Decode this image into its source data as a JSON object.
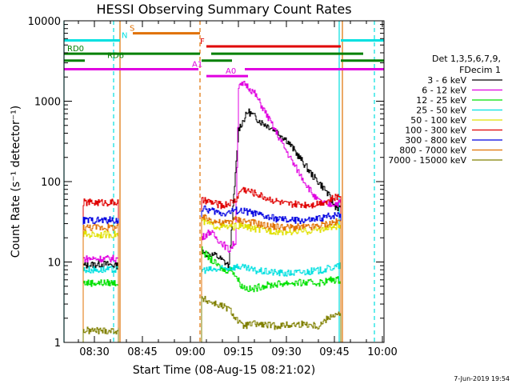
{
  "chart_data": {
    "type": "line",
    "title": "HESSI Observing Summary Count Rates",
    "xlabel": "Start Time (08-Aug-15 08:21:02)",
    "ylabel": "Count Rate (s⁻¹ detector⁻¹)",
    "xlim_min": [
      20.5,
      120.5
    ],
    "ylim": [
      1,
      10000
    ],
    "yscale": "log",
    "x_ticks": [
      {
        "min": 30,
        "label": "08:30"
      },
      {
        "min": 45,
        "label": "08:45"
      },
      {
        "min": 60,
        "label": "09:00"
      },
      {
        "min": 75,
        "label": "09:15"
      },
      {
        "min": 90,
        "label": "09:30"
      },
      {
        "min": 105,
        "label": "09:45"
      },
      {
        "min": 120,
        "label": "10:00"
      }
    ],
    "y_ticks": [
      {
        "value": 1,
        "label": "1"
      },
      {
        "value": 10,
        "label": "10"
      },
      {
        "value": 100,
        "label": "100"
      },
      {
        "value": 1000,
        "label": "1000"
      },
      {
        "value": 10000,
        "label": "10000"
      }
    ],
    "legend_header": [
      "Det 1,3,5,6,7,9,",
      "FDecim 1"
    ],
    "legend_placement": "right",
    "segments": [
      [
        26.5,
        37.5
      ],
      [
        63.5,
        107
      ]
    ],
    "series": [
      {
        "name": "3 - 6 keV",
        "color": "#000000",
        "points": [
          [
            26.5,
            9
          ],
          [
            32,
            9.5
          ],
          [
            37.5,
            9
          ],
          [
            63.5,
            13
          ],
          [
            68,
            12
          ],
          [
            72,
            9
          ],
          [
            75,
            450
          ],
          [
            78,
            750
          ],
          [
            82,
            550
          ],
          [
            86,
            450
          ],
          [
            90,
            330
          ],
          [
            94,
            200
          ],
          [
            98,
            120
          ],
          [
            102,
            80
          ],
          [
            105,
            50
          ],
          [
            107,
            45
          ]
        ]
      },
      {
        "name": "6 - 12 keV",
        "color": "#e000e0",
        "points": [
          [
            26.5,
            11
          ],
          [
            37.5,
            11
          ],
          [
            63.5,
            20
          ],
          [
            66,
            24
          ],
          [
            68,
            20
          ],
          [
            70,
            17
          ],
          [
            72,
            14
          ],
          [
            74,
            18
          ],
          [
            75,
            1500
          ],
          [
            77,
            1650
          ],
          [
            80,
            1250
          ],
          [
            84,
            650
          ],
          [
            88,
            330
          ],
          [
            92,
            170
          ],
          [
            96,
            95
          ],
          [
            99,
            62
          ],
          [
            101,
            54
          ],
          [
            103,
            52
          ],
          [
            107,
            55
          ]
        ]
      },
      {
        "name": "12 - 25 keV",
        "color": "#00e000",
        "points": [
          [
            26.5,
            5.5
          ],
          [
            37.5,
            5.5
          ],
          [
            63.5,
            14
          ],
          [
            66,
            11
          ],
          [
            70,
            8
          ],
          [
            73,
            8
          ],
          [
            76,
            5
          ],
          [
            79,
            4.5
          ],
          [
            82,
            5
          ],
          [
            90,
            5.5
          ],
          [
            100,
            5.5
          ],
          [
            104,
            6
          ],
          [
            107,
            6
          ]
        ]
      },
      {
        "name": "25 - 50 keV",
        "color": "#00e0e0",
        "points": [
          [
            26.5,
            8
          ],
          [
            37.5,
            8
          ],
          [
            63.5,
            8
          ],
          [
            68,
            8
          ],
          [
            72,
            8.5
          ],
          [
            75,
            8.8
          ],
          [
            80,
            7.8
          ],
          [
            90,
            7.2
          ],
          [
            100,
            7.8
          ],
          [
            107,
            9
          ]
        ]
      },
      {
        "name": "50 - 100 keV",
        "color": "#e0e000",
        "points": [
          [
            26.5,
            22
          ],
          [
            37.5,
            22
          ],
          [
            63.5,
            32
          ],
          [
            68,
            28
          ],
          [
            72,
            27
          ],
          [
            75,
            28
          ],
          [
            78,
            27
          ],
          [
            82,
            25
          ],
          [
            88,
            24
          ],
          [
            96,
            24
          ],
          [
            104,
            27
          ],
          [
            107,
            28
          ]
        ]
      },
      {
        "name": "100 - 300 keV",
        "color": "#e00000",
        "points": [
          [
            26.5,
            55
          ],
          [
            37.5,
            55
          ],
          [
            63.5,
            58
          ],
          [
            66,
            56
          ],
          [
            70,
            50
          ],
          [
            74,
            58
          ],
          [
            76,
            82
          ],
          [
            80,
            72
          ],
          [
            84,
            62
          ],
          [
            90,
            52
          ],
          [
            98,
            52
          ],
          [
            103,
            58
          ],
          [
            107,
            68
          ]
        ]
      },
      {
        "name": "300 - 800 keV",
        "color": "#0000e0",
        "points": [
          [
            26.5,
            33
          ],
          [
            37.5,
            33
          ],
          [
            63.5,
            46
          ],
          [
            66,
            44
          ],
          [
            70,
            40
          ],
          [
            74,
            44
          ],
          [
            78,
            42
          ],
          [
            84,
            36
          ],
          [
            90,
            33
          ],
          [
            98,
            33
          ],
          [
            103,
            37
          ],
          [
            107,
            40
          ]
        ]
      },
      {
        "name": "800 - 7000 keV",
        "color": "#e07000",
        "points": [
          [
            26.5,
            27
          ],
          [
            37.5,
            27
          ],
          [
            63.5,
            36
          ],
          [
            66,
            34
          ],
          [
            70,
            30
          ],
          [
            74,
            34
          ],
          [
            78,
            32
          ],
          [
            84,
            28
          ],
          [
            90,
            27
          ],
          [
            98,
            27
          ],
          [
            103,
            30
          ],
          [
            107,
            32
          ]
        ]
      },
      {
        "name": "7000 - 15000 keV",
        "color": "#808000",
        "points": [
          [
            26.5,
            1.4
          ],
          [
            31,
            1.4
          ],
          [
            37.5,
            1.4
          ],
          [
            63.5,
            3.5
          ],
          [
            68,
            3
          ],
          [
            72,
            2.6
          ],
          [
            76,
            1.6
          ],
          [
            80,
            1.7
          ],
          [
            86,
            1.6
          ],
          [
            96,
            1.7
          ],
          [
            100,
            1.6
          ],
          [
            104,
            2.2
          ],
          [
            107,
            2.2
          ]
        ]
      }
    ],
    "flag_bars": [
      {
        "label": "S",
        "color": "#e07000",
        "y": 7000,
        "x": [
          42,
          63
        ],
        "label_x": 41
      },
      {
        "label": "N",
        "color": "#00e0e0",
        "y": 5700,
        "x": [
          20.5,
          38
        ],
        "x2": [
          107,
          120.5
        ],
        "label_x": 38.5
      },
      {
        "label": "F",
        "color": "#e00000",
        "y": 4800,
        "x": [
          65,
          107
        ],
        "label_x": 63
      },
      {
        "label": "RD0",
        "color": "#008000",
        "y": 3900,
        "x": [
          20.5,
          63
        ],
        "x2": [
          66.5,
          114
        ],
        "label_x": 21.5
      },
      {
        "label": "RD6",
        "color": "#008000",
        "y": 3200,
        "x": [
          20.5,
          27
        ],
        "x2": [
          63.5,
          73,
          107
        ],
        "label_x": 34
      },
      {
        "label": "A1",
        "color": "#e000e0",
        "y": 2500,
        "x": [
          20.5,
          62.5
        ],
        "x2": [
          77,
          120.5
        ],
        "label_x": 60.5
      },
      {
        "label": "A0",
        "color": "#e000e0",
        "y": 2050,
        "x": [
          65,
          78
        ],
        "label_x": 71
      }
    ],
    "vlines": [
      {
        "x": 20.5,
        "color": "#00e0e0",
        "dash": false
      },
      {
        "x": 36,
        "color": "#00e0e0",
        "dash": true
      },
      {
        "x": 38,
        "color": "#e07000",
        "dash": false
      },
      {
        "x": 63,
        "color": "#e07000",
        "dash": true
      },
      {
        "x": 106.5,
        "color": "#00e0e0",
        "dash": false
      },
      {
        "x": 107.5,
        "color": "#e07000",
        "dash": false
      },
      {
        "x": 117.5,
        "color": "#00e0e0",
        "dash": true
      }
    ],
    "grid": false
  },
  "footer_date": "7-Jun-2019 19:54"
}
